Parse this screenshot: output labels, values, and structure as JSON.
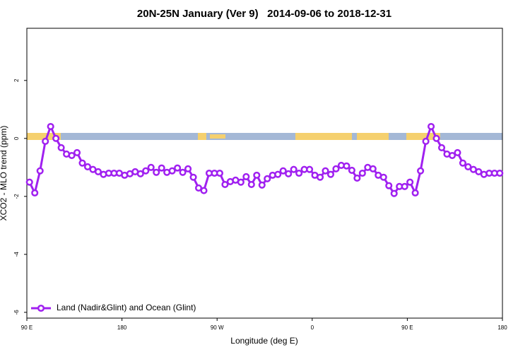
{
  "chart_data": {
    "type": "line",
    "title": "20N-25N January (Ver 9)   2014-09-06 to 2018-12-31",
    "x_label": "Longitude (deg E)",
    "y_label": "XCO2 - MLO trend (ppm)",
    "xlim": [
      90,
      540
    ],
    "ylim": [
      -6.2,
      3.8
    ],
    "xticks": [
      {
        "value": 90,
        "label": "90 E"
      },
      180,
      {
        "value": 270,
        "label": "90 W"
      },
      {
        "value": 360,
        "label": "0"
      },
      {
        "value": 450,
        "label": "90 E"
      },
      {
        "value": 540,
        "label": "180"
      }
    ],
    "yticks": [
      -6,
      -4,
      -2,
      0,
      2
    ],
    "legend": "bottom-left",
    "x": [
      92.5,
      97.5,
      102.5,
      107.5,
      112.5,
      117.5,
      122.5,
      127.5,
      132.5,
      137.5,
      142.5,
      147.5,
      152.5,
      157.5,
      162.5,
      167.5,
      172.5,
      177.5,
      182.5,
      187.5,
      192.5,
      197.5,
      202.5,
      207.5,
      212.5,
      217.5,
      222.5,
      227.5,
      232.5,
      237.5,
      242.5,
      247.5,
      252.5,
      257.5,
      262.5,
      267.5,
      272.5,
      277.5,
      282.5,
      287.5,
      292.5,
      297.5,
      302.5,
      307.5,
      312.5,
      317.5,
      322.5,
      327.5,
      332.5,
      337.5,
      342.5,
      347.5,
      352.5,
      357.5,
      362.5,
      367.5,
      372.5,
      377.5,
      382.5,
      387.5,
      392.5,
      397.5,
      402.5,
      407.5,
      412.5,
      417.5,
      422.5,
      427.5,
      432.5,
      437.5,
      442.5,
      447.5,
      452.5,
      457.5,
      462.5,
      467.5,
      472.5,
      477.5,
      482.5,
      487.5,
      492.5,
      497.5,
      502.5,
      507.5,
      512.5,
      517.5,
      522.5,
      527.5,
      532.5,
      537.5
    ],
    "series": [
      {
        "name": "Land (Nadir&Glint) and Ocean (Glint)",
        "color": "#a020f0",
        "values": [
          -1.51,
          -1.88,
          -1.12,
          -0.1,
          0.41,
          0.0,
          -0.32,
          -0.54,
          -0.59,
          -0.49,
          -0.85,
          -0.98,
          -1.07,
          -1.15,
          -1.24,
          -1.2,
          -1.2,
          -1.2,
          -1.27,
          -1.22,
          -1.15,
          -1.22,
          -1.12,
          -1.0,
          -1.17,
          -1.02,
          -1.17,
          -1.12,
          -1.02,
          -1.17,
          -1.05,
          -1.34,
          -1.71,
          -1.8,
          -1.2,
          -1.2,
          -1.2,
          -1.59,
          -1.49,
          -1.44,
          -1.51,
          -1.32,
          -1.59,
          -1.27,
          -1.61,
          -1.39,
          -1.27,
          -1.24,
          -1.12,
          -1.22,
          -1.07,
          -1.2,
          -1.07,
          -1.07,
          -1.27,
          -1.34,
          -1.12,
          -1.24,
          -1.05,
          -0.93,
          -0.95,
          -1.1,
          -1.37,
          -1.2,
          -1.0,
          -1.05,
          -1.27,
          -1.34,
          -1.63,
          -1.9,
          -1.66,
          -1.66,
          -1.51,
          -1.88,
          -1.12,
          -0.1,
          0.41,
          0.0,
          -0.32,
          -0.54,
          -0.59,
          -0.49,
          -0.85,
          -0.98,
          -1.07,
          -1.15,
          -1.24,
          -1.2,
          -1.2,
          -1.2
        ]
      }
    ]
  }
}
